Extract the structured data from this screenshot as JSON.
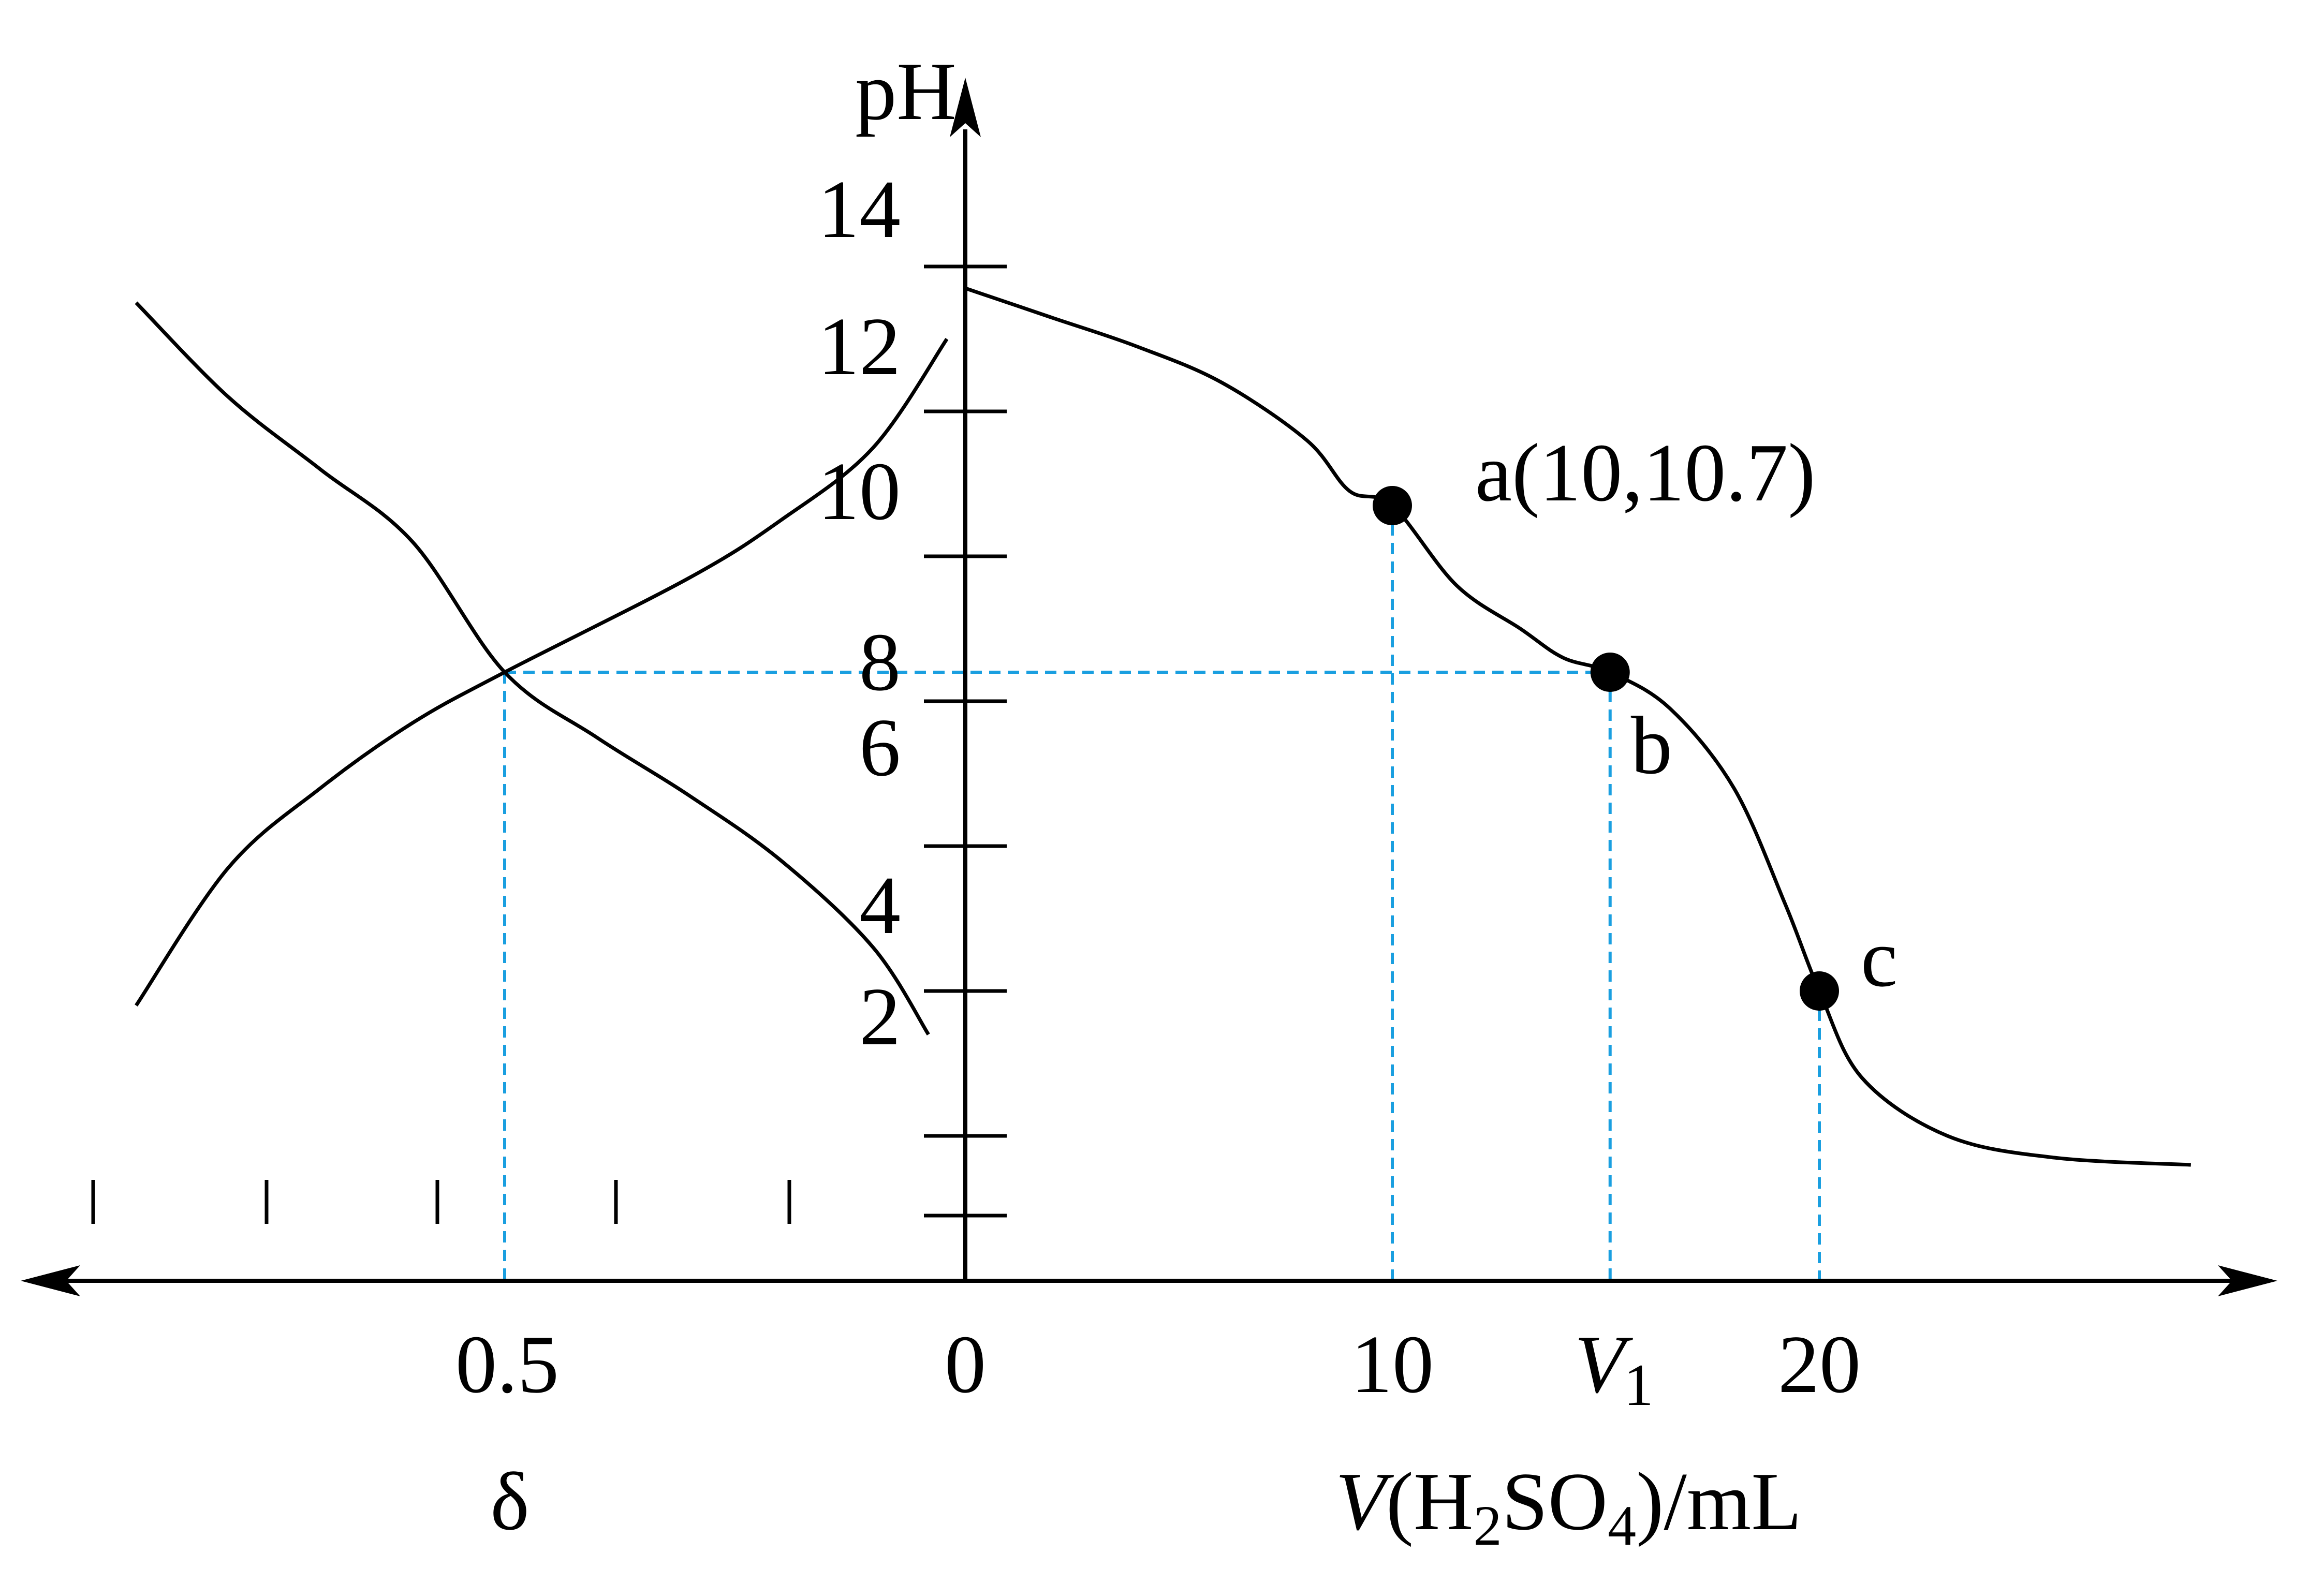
{
  "chart_data": [
    {
      "type": "line",
      "title": "",
      "xlabel": {
        "prefix": "V",
        "open": "(H",
        "sub1": "2",
        "mid": "SO",
        "sub2": "4",
        "close": ")/mL"
      },
      "ylabel": "pH",
      "ylim": [
        0,
        14
      ],
      "yticks": [
        2,
        4,
        6,
        8,
        10,
        12,
        14
      ],
      "xtick_labels": [
        {
          "label": "0",
          "x": 0
        },
        {
          "label": "10",
          "x": 10
        },
        {
          "label": "20",
          "x": 20
        }
      ],
      "v1": {
        "label": "V",
        "sub": "1",
        "x": 15.1
      },
      "series": [
        {
          "points": [
            [
              0,
              13.7
            ],
            [
              2,
              13.3
            ],
            [
              4,
              12.9
            ],
            [
              6,
              12.4
            ],
            [
              8,
              11.6
            ],
            [
              9,
              10.9
            ],
            [
              10,
              10.7
            ],
            [
              11.5,
              9.6
            ],
            [
              13,
              9.0
            ],
            [
              14,
              8.6
            ],
            [
              15.1,
              8.4
            ],
            [
              16.5,
              7.9
            ],
            [
              18,
              6.8
            ],
            [
              19.2,
              5.2
            ],
            [
              20,
              4.0
            ],
            [
              21,
              2.8
            ],
            [
              23,
              2.0
            ],
            [
              25.5,
              1.7
            ],
            [
              28.7,
              1.6
            ]
          ]
        }
      ],
      "points": [
        {
          "label": "a(10,10.7)",
          "x": 10,
          "y": 10.7
        },
        {
          "label": "b",
          "x": 15.1,
          "y": 8.4
        },
        {
          "label": "c",
          "x": 20,
          "y": 4.0
        }
      ],
      "reference_lines": "blue dashed",
      "grid": false
    },
    {
      "type": "line",
      "xlabel": "δ",
      "xtick_labels": [
        {
          "label": "0.5",
          "x": 0.5
        },
        {
          "label": "0",
          "x": 0
        }
      ],
      "xticks_unlabeled": 5,
      "series": [
        {
          "points": [
            [
              0.9,
              13.5
            ],
            [
              0.8,
              12.2
            ],
            [
              0.7,
              11.2
            ],
            [
              0.6,
              10.2
            ],
            [
              0.5,
              8.4
            ],
            [
              0.4,
              7.5
            ],
            [
              0.3,
              6.7
            ],
            [
              0.2,
              5.8
            ],
            [
              0.1,
              4.6
            ],
            [
              0.04,
              3.4
            ]
          ]
        },
        {
          "points": [
            [
              0.02,
              13.0
            ],
            [
              0.1,
              11.5
            ],
            [
              0.2,
              10.5
            ],
            [
              0.3,
              9.7
            ],
            [
              0.5,
              8.4
            ],
            [
              0.6,
              7.7
            ],
            [
              0.7,
              6.8
            ],
            [
              0.8,
              5.7
            ],
            [
              0.9,
              3.8
            ]
          ]
        }
      ],
      "intersection": {
        "x": 0.5,
        "y": 8.4
      }
    }
  ],
  "colors": {
    "curve": "#000000",
    "reference": "#1a9fe0",
    "axis": "#000000",
    "point": "#000000"
  }
}
